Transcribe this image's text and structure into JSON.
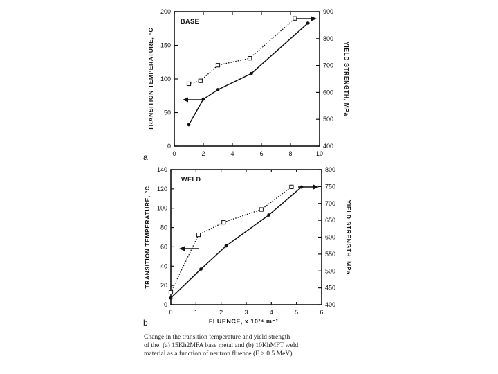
{
  "chart_data": [
    {
      "type": "line",
      "panel_letter": "a",
      "label": "BASE",
      "xlim": [
        0,
        10
      ],
      "x_ticks": [
        "0",
        "2",
        "4",
        "6",
        "8",
        "10"
      ],
      "ylim_left": [
        0,
        200
      ],
      "y_left_ticks": [
        "0",
        "50",
        "100",
        "150",
        "200"
      ],
      "ylabel_left": "TRANSITION TEMPERATURE, °C",
      "ylim_right": [
        400,
        900
      ],
      "y_right_ticks": [
        "400",
        "500",
        "600",
        "700",
        "800",
        "900"
      ],
      "ylabel_right": "YIELD STRENGTH, MPa",
      "series": [
        {
          "name": "transition temperature",
          "axis": "left",
          "marker": "filled-circle",
          "line": "solid",
          "x": [
            1.0,
            2.0,
            3.0,
            5.3,
            9.2
          ],
          "y": [
            32,
            70,
            84,
            108,
            183
          ]
        },
        {
          "name": "yield strength",
          "axis": "right",
          "marker": "open-square",
          "line": "dotted",
          "x": [
            1.0,
            1.8,
            3.0,
            5.2,
            8.3
          ],
          "y": [
            632,
            643,
            701,
            727,
            875
          ]
        }
      ]
    },
    {
      "type": "line",
      "panel_letter": "b",
      "label": "WELD",
      "xlim": [
        0,
        6
      ],
      "x_ticks": [
        "0",
        "1",
        "2",
        "3",
        "4",
        "5",
        "6"
      ],
      "xlabel": "FLUENCE,  x 10²⁴ m⁻²",
      "ylim_left": [
        0,
        140
      ],
      "y_left_ticks": [
        "0",
        "20",
        "40",
        "60",
        "80",
        "100",
        "120",
        "140"
      ],
      "ylabel_left": "TRANSITION TEMPERATURE, °C",
      "ylim_right": [
        400,
        800
      ],
      "y_right_ticks": [
        "400",
        "450",
        "500",
        "550",
        "600",
        "650",
        "700",
        "750",
        "800"
      ],
      "ylabel_right": "YIELD STRENGTH, MPa",
      "series": [
        {
          "name": "transition temperature",
          "axis": "left",
          "marker": "filled-circle",
          "line": "solid",
          "x": [
            0.0,
            1.2,
            2.2,
            3.9,
            5.2
          ],
          "y": [
            7,
            37,
            61,
            93,
            122
          ]
        },
        {
          "name": "yield strength",
          "axis": "right",
          "marker": "open-square",
          "line": "dotted",
          "x": [
            0.0,
            1.1,
            2.1,
            3.6,
            4.8
          ],
          "y": [
            437,
            607,
            644,
            682,
            749
          ]
        }
      ]
    }
  ],
  "caption": {
    "line1": "Change in the transition temperature and yield strength",
    "line2": "of the: (a) 15Kh2MFA base metal and (b) 10KhMFT weld",
    "line3": "material as a function of neutron fluence (E > 0.5 MeV)."
  }
}
